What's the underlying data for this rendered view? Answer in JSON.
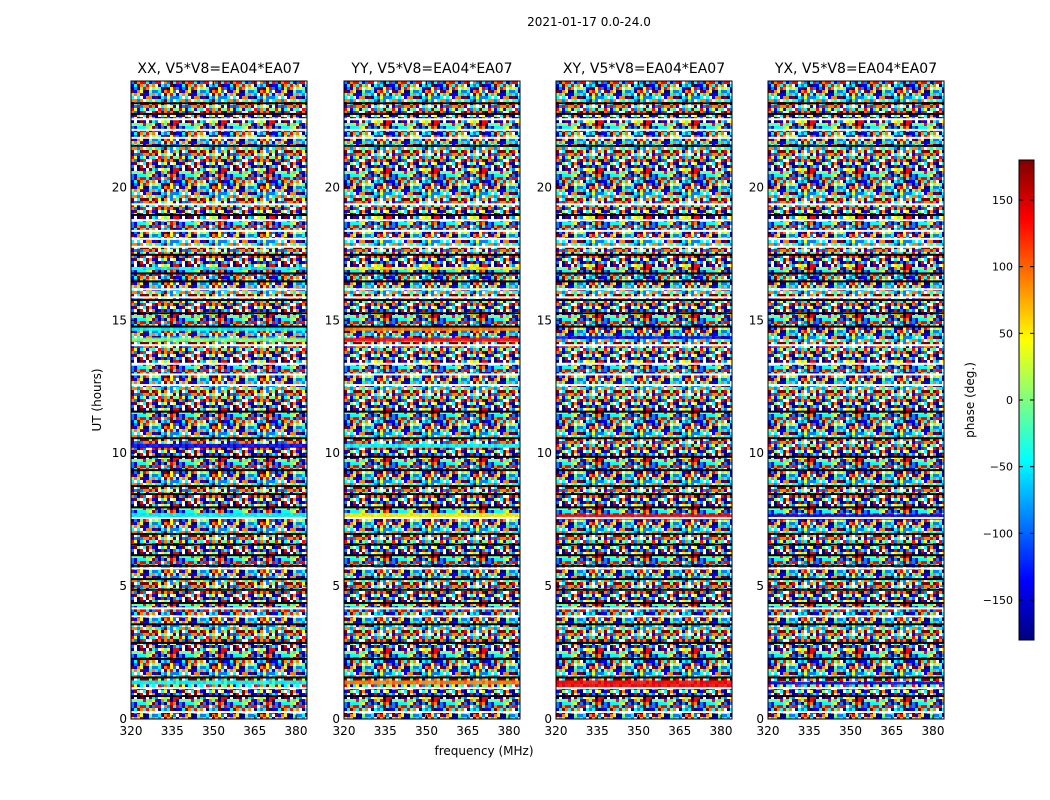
{
  "chart_data": {
    "type": "heatmap",
    "suptitle": "2021-01-17 0.0-24.0",
    "xlabel": "frequency (MHz)",
    "ylabel": "UT (hours)",
    "xlim": [
      320,
      384
    ],
    "ylim": [
      0,
      24
    ],
    "xticks": [
      320,
      335,
      350,
      365,
      380
    ],
    "yticks": [
      0,
      5,
      10,
      15,
      20
    ],
    "panels": [
      {
        "title": "XX, V5*V8=EA04*EA07"
      },
      {
        "title": "YY, V5*V8=EA04*EA07"
      },
      {
        "title": "XY, V5*V8=EA04*EA07"
      },
      {
        "title": "YX, V5*V8=EA04*EA07"
      }
    ],
    "colorbar": {
      "label": "phase (deg.)",
      "range": [
        -180,
        180
      ],
      "ticks": [
        150,
        100,
        50,
        0,
        -50,
        -100,
        -150
      ],
      "tick_labels": [
        "150",
        "100",
        "50",
        "0",
        "−50",
        "−100",
        "−150"
      ],
      "colormap": [
        "#00007f",
        "#0000ff",
        "#007fff",
        "#00ffff",
        "#7fff7f",
        "#ffff00",
        "#ff7f00",
        "#ff0000",
        "#7f0000"
      ]
    }
  }
}
